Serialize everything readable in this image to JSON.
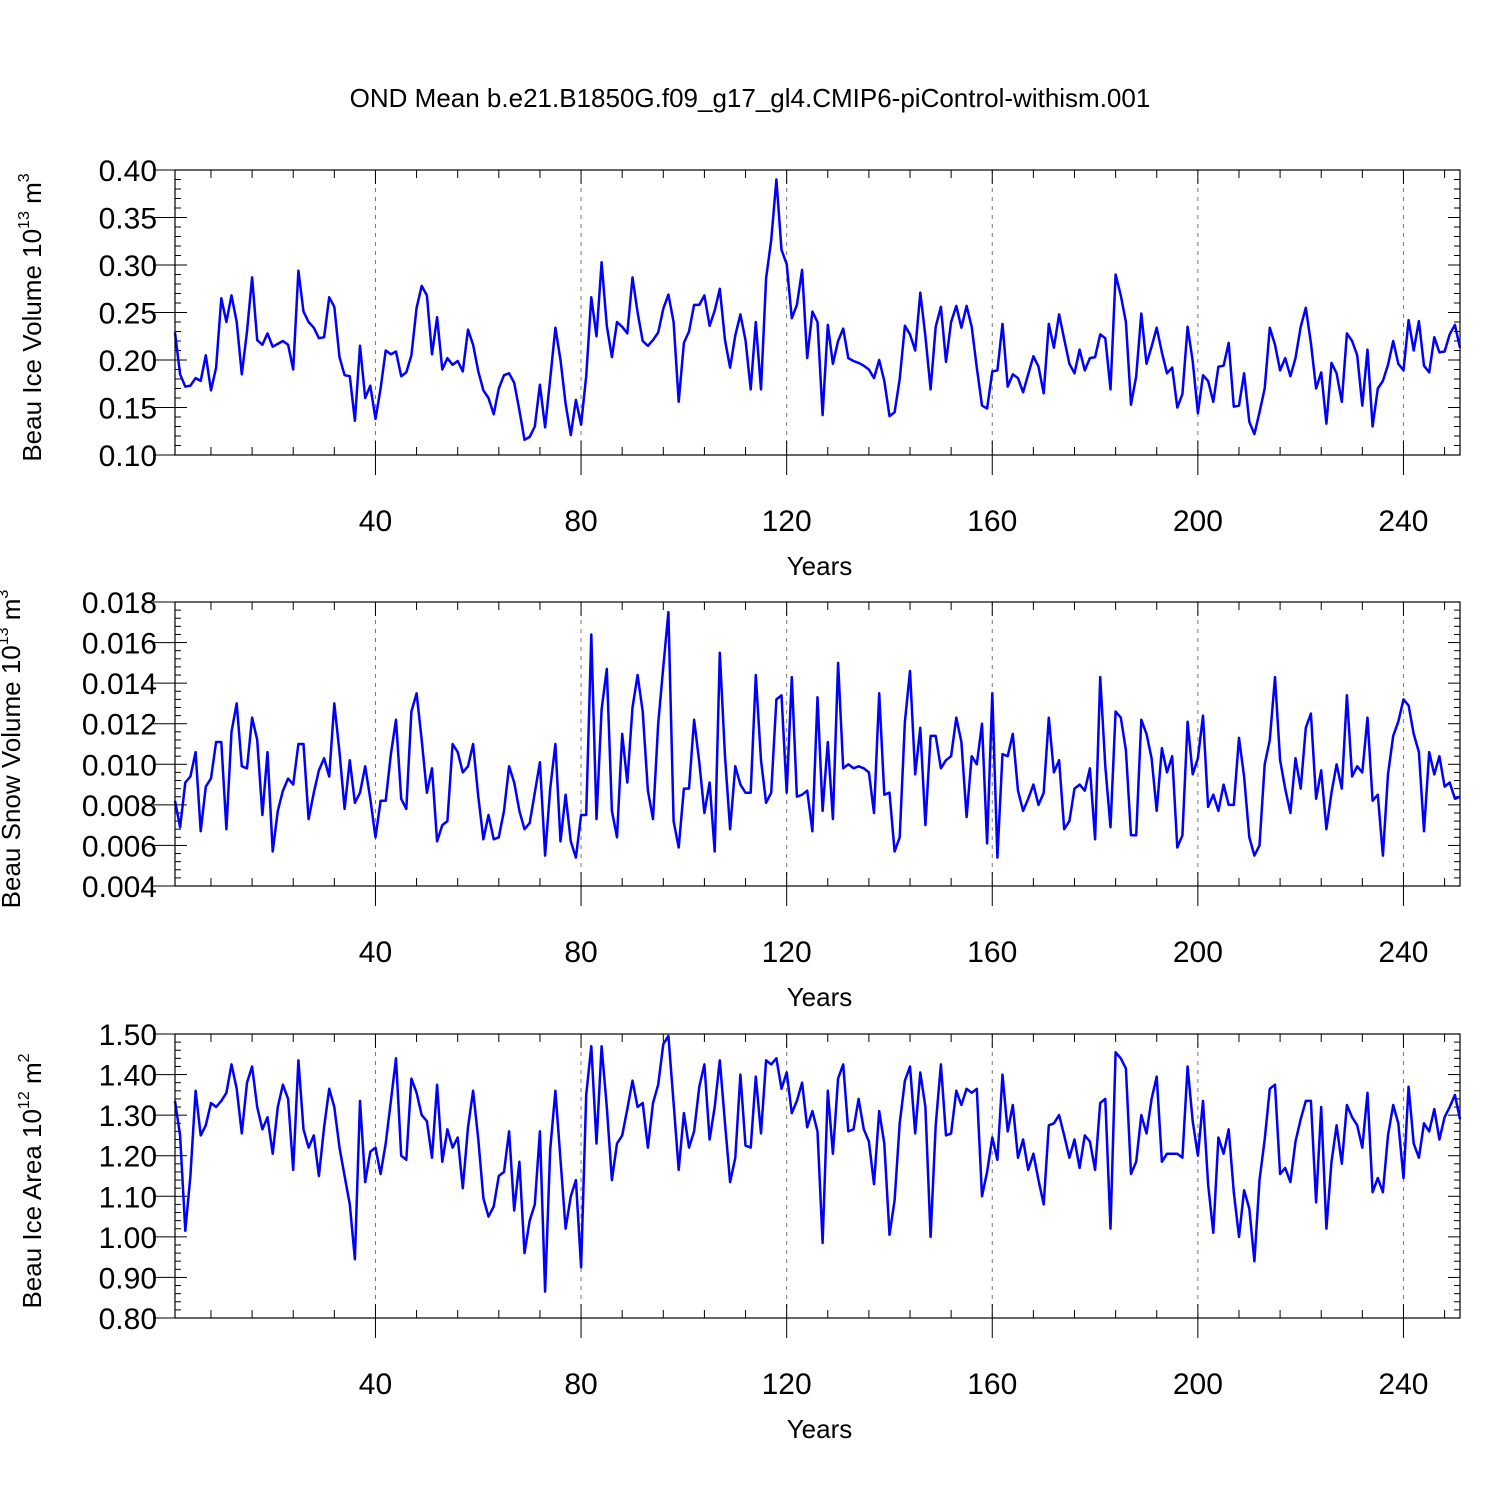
{
  "title": "OND Mean b.e21.B1850G.f09_g17_gl4.CMIP6-piControl-withism.001",
  "line_color": "#0000ff",
  "chart_data": [
    {
      "type": "line",
      "ylabel": "Beau Ice Volume 10",
      "ylabel_exp": "13",
      "ylabel_unit": " m",
      "ylabel_unit_exp": "3",
      "xlabel": "Years",
      "xlim": [
        1,
        251
      ],
      "ylim": [
        0.1,
        0.4
      ],
      "x_ticks": [
        40,
        80,
        120,
        160,
        200,
        240
      ],
      "x_tick_labels": [
        "40",
        "80",
        "120",
        "160",
        "200",
        "240"
      ],
      "y_ticks": [
        0.1,
        0.15,
        0.2,
        0.25,
        0.3,
        0.35,
        0.4
      ],
      "y_tick_labels": [
        "0.10",
        "0.15",
        "0.20",
        "0.25",
        "0.30",
        "0.35",
        "0.40"
      ],
      "vertical_gridlines": [
        40,
        80,
        120,
        160,
        200,
        240
      ],
      "x_start": 1,
      "values": [
        0.229,
        0.185,
        0.172,
        0.173,
        0.181,
        0.178,
        0.205,
        0.168,
        0.192,
        0.265,
        0.24,
        0.268,
        0.24,
        0.185,
        0.23,
        0.287,
        0.221,
        0.216,
        0.228,
        0.214,
        0.217,
        0.22,
        0.216,
        0.19,
        0.294,
        0.251,
        0.24,
        0.234,
        0.223,
        0.224,
        0.266,
        0.256,
        0.203,
        0.184,
        0.183,
        0.136,
        0.215,
        0.16,
        0.173,
        0.138,
        0.17,
        0.21,
        0.206,
        0.209,
        0.183,
        0.187,
        0.205,
        0.255,
        0.278,
        0.268,
        0.206,
        0.245,
        0.19,
        0.202,
        0.195,
        0.199,
        0.188,
        0.232,
        0.216,
        0.188,
        0.168,
        0.16,
        0.143,
        0.17,
        0.184,
        0.186,
        0.176,
        0.147,
        0.116,
        0.119,
        0.13,
        0.174,
        0.129,
        0.18,
        0.234,
        0.2,
        0.154,
        0.121,
        0.158,
        0.132,
        0.183,
        0.266,
        0.225,
        0.303,
        0.236,
        0.203,
        0.24,
        0.235,
        0.228,
        0.287,
        0.25,
        0.22,
        0.215,
        0.221,
        0.229,
        0.254,
        0.269,
        0.24,
        0.156,
        0.218,
        0.23,
        0.258,
        0.258,
        0.268,
        0.236,
        0.252,
        0.275,
        0.221,
        0.192,
        0.226,
        0.248,
        0.221,
        0.169,
        0.24,
        0.169,
        0.286,
        0.326,
        0.39,
        0.316,
        0.301,
        0.244,
        0.258,
        0.295,
        0.202,
        0.251,
        0.24,
        0.142,
        0.237,
        0.196,
        0.22,
        0.233,
        0.202,
        0.199,
        0.197,
        0.194,
        0.19,
        0.181,
        0.2,
        0.178,
        0.141,
        0.145,
        0.18,
        0.236,
        0.227,
        0.21,
        0.271,
        0.225,
        0.169,
        0.235,
        0.256,
        0.198,
        0.24,
        0.257,
        0.234,
        0.257,
        0.235,
        0.192,
        0.152,
        0.149,
        0.188,
        0.189,
        0.238,
        0.172,
        0.185,
        0.181,
        0.166,
        0.185,
        0.204,
        0.193,
        0.165,
        0.238,
        0.213,
        0.248,
        0.222,
        0.196,
        0.186,
        0.211,
        0.189,
        0.202,
        0.203,
        0.227,
        0.223,
        0.169,
        0.29,
        0.268,
        0.24,
        0.153,
        0.183,
        0.249,
        0.196,
        0.214,
        0.234,
        0.208,
        0.186,
        0.192,
        0.15,
        0.164,
        0.235,
        0.199,
        0.144,
        0.184,
        0.178,
        0.156,
        0.193,
        0.194,
        0.218,
        0.151,
        0.152,
        0.186,
        0.135,
        0.122,
        0.145,
        0.17,
        0.234,
        0.216,
        0.189,
        0.202,
        0.183,
        0.202,
        0.235,
        0.255,
        0.218,
        0.17,
        0.187,
        0.133,
        0.197,
        0.186,
        0.156,
        0.228,
        0.22,
        0.205,
        0.152,
        0.211,
        0.13,
        0.17,
        0.178,
        0.195,
        0.22,
        0.196,
        0.189,
        0.242,
        0.21,
        0.241,
        0.194,
        0.187,
        0.224,
        0.208,
        0.209,
        0.227,
        0.237,
        0.213
      ]
    },
    {
      "type": "line",
      "ylabel": "Beau Snow Volume 10",
      "ylabel_exp": "13",
      "ylabel_unit": " m",
      "ylabel_unit_exp": "3",
      "xlabel": "Years",
      "xlim": [
        1,
        251
      ],
      "ylim": [
        0.004,
        0.018
      ],
      "x_ticks": [
        40,
        80,
        120,
        160,
        200,
        240
      ],
      "x_tick_labels": [
        "40",
        "80",
        "120",
        "160",
        "200",
        "240"
      ],
      "y_ticks": [
        0.004,
        0.006,
        0.008,
        0.01,
        0.012,
        0.014,
        0.016,
        0.018
      ],
      "y_tick_labels": [
        "0.004",
        "0.006",
        "0.008",
        "0.010",
        "0.012",
        "0.014",
        "0.016",
        "0.018"
      ],
      "vertical_gridlines": [
        40,
        80,
        120,
        160,
        200,
        240
      ],
      "x_start": 1,
      "values": [
        0.0082,
        0.0069,
        0.0091,
        0.0094,
        0.0106,
        0.0067,
        0.0089,
        0.0093,
        0.0111,
        0.0111,
        0.0068,
        0.0116,
        0.013,
        0.0099,
        0.0098,
        0.0123,
        0.0112,
        0.0075,
        0.0106,
        0.0057,
        0.0077,
        0.0087,
        0.0093,
        0.009,
        0.011,
        0.011,
        0.0073,
        0.0086,
        0.0097,
        0.0103,
        0.0094,
        0.013,
        0.0106,
        0.0078,
        0.0102,
        0.0081,
        0.0086,
        0.0099,
        0.0083,
        0.0064,
        0.0082,
        0.0082,
        0.0105,
        0.0122,
        0.0083,
        0.0078,
        0.0126,
        0.0135,
        0.0112,
        0.0086,
        0.0098,
        0.0062,
        0.007,
        0.0072,
        0.011,
        0.0106,
        0.0096,
        0.0099,
        0.011,
        0.0084,
        0.0063,
        0.0075,
        0.0063,
        0.0064,
        0.0077,
        0.0099,
        0.0091,
        0.0077,
        0.0068,
        0.0071,
        0.0086,
        0.0101,
        0.0055,
        0.0088,
        0.011,
        0.0062,
        0.0085,
        0.0062,
        0.0054,
        0.0075,
        0.0075,
        0.0164,
        0.0073,
        0.0127,
        0.0147,
        0.0077,
        0.0064,
        0.0115,
        0.0091,
        0.0128,
        0.0144,
        0.0126,
        0.0087,
        0.0073,
        0.012,
        0.0148,
        0.0175,
        0.0072,
        0.0059,
        0.0088,
        0.0088,
        0.0122,
        0.0101,
        0.0076,
        0.0091,
        0.0057,
        0.0155,
        0.0104,
        0.0068,
        0.0099,
        0.009,
        0.0086,
        0.0086,
        0.0144,
        0.0102,
        0.0081,
        0.0086,
        0.0132,
        0.0134,
        0.0086,
        0.0143,
        0.0084,
        0.0085,
        0.0087,
        0.0067,
        0.0133,
        0.0077,
        0.0111,
        0.0073,
        0.015,
        0.0098,
        0.01,
        0.0098,
        0.0099,
        0.0098,
        0.0096,
        0.0076,
        0.0135,
        0.0085,
        0.0086,
        0.0057,
        0.0064,
        0.0121,
        0.0146,
        0.0095,
        0.0118,
        0.007,
        0.0114,
        0.0114,
        0.0098,
        0.0102,
        0.0104,
        0.0123,
        0.0111,
        0.0074,
        0.0104,
        0.01,
        0.012,
        0.0061,
        0.0135,
        0.0054,
        0.0105,
        0.0104,
        0.0115,
        0.0087,
        0.0077,
        0.0083,
        0.009,
        0.008,
        0.0086,
        0.0123,
        0.0096,
        0.0102,
        0.0068,
        0.0072,
        0.0088,
        0.009,
        0.0087,
        0.0098,
        0.0063,
        0.0143,
        0.0099,
        0.0069,
        0.0126,
        0.0123,
        0.0107,
        0.0065,
        0.0065,
        0.0122,
        0.0115,
        0.0103,
        0.0077,
        0.0108,
        0.0096,
        0.0104,
        0.0059,
        0.0065,
        0.0121,
        0.0095,
        0.0103,
        0.0124,
        0.0079,
        0.0085,
        0.0077,
        0.009,
        0.008,
        0.008,
        0.0113,
        0.0094,
        0.0064,
        0.0055,
        0.006,
        0.01,
        0.0112,
        0.0143,
        0.0102,
        0.0088,
        0.0076,
        0.0103,
        0.0088,
        0.0118,
        0.0125,
        0.0083,
        0.0097,
        0.0068,
        0.0086,
        0.01,
        0.0088,
        0.0134,
        0.0094,
        0.0099,
        0.0096,
        0.0123,
        0.0082,
        0.0085,
        0.0055,
        0.0095,
        0.0114,
        0.0121,
        0.0132,
        0.0129,
        0.0115,
        0.0106,
        0.0067,
        0.0106,
        0.0095,
        0.0104,
        0.0089,
        0.0091,
        0.0083,
        0.0084
      ]
    },
    {
      "type": "line",
      "ylabel": "Beau Ice Area 10",
      "ylabel_exp": "12",
      "ylabel_unit": " m",
      "ylabel_unit_exp": "2",
      "xlabel": "Years",
      "xlim": [
        1,
        251
      ],
      "ylim": [
        0.8,
        1.5
      ],
      "x_ticks": [
        40,
        80,
        120,
        160,
        200,
        240
      ],
      "x_tick_labels": [
        "40",
        "80",
        "120",
        "160",
        "200",
        "240"
      ],
      "y_ticks": [
        0.8,
        0.9,
        1.0,
        1.1,
        1.2,
        1.3,
        1.4,
        1.5
      ],
      "y_tick_labels": [
        "0.80",
        "0.90",
        "1.00",
        "1.10",
        "1.20",
        "1.30",
        "1.40",
        "1.50"
      ],
      "vertical_gridlines": [
        40,
        80,
        120,
        160,
        200,
        240
      ],
      "x_start": 1,
      "values": [
        1.335,
        1.25,
        1.015,
        1.15,
        1.36,
        1.25,
        1.275,
        1.33,
        1.32,
        1.335,
        1.355,
        1.425,
        1.365,
        1.255,
        1.38,
        1.42,
        1.32,
        1.265,
        1.295,
        1.205,
        1.32,
        1.375,
        1.34,
        1.165,
        1.435,
        1.265,
        1.22,
        1.25,
        1.15,
        1.27,
        1.365,
        1.32,
        1.22,
        1.15,
        1.08,
        0.945,
        1.335,
        1.135,
        1.21,
        1.22,
        1.155,
        1.23,
        1.335,
        1.44,
        1.2,
        1.19,
        1.39,
        1.355,
        1.3,
        1.285,
        1.195,
        1.375,
        1.185,
        1.265,
        1.22,
        1.245,
        1.12,
        1.27,
        1.36,
        1.24,
        1.095,
        1.05,
        1.075,
        1.15,
        1.16,
        1.26,
        1.065,
        1.185,
        0.96,
        1.04,
        1.08,
        1.26,
        0.865,
        1.215,
        1.36,
        1.19,
        1.02,
        1.1,
        1.14,
        0.925,
        1.35,
        1.47,
        1.23,
        1.47,
        1.32,
        1.14,
        1.23,
        1.25,
        1.315,
        1.385,
        1.32,
        1.33,
        1.22,
        1.33,
        1.375,
        1.475,
        1.495,
        1.33,
        1.165,
        1.305,
        1.22,
        1.26,
        1.37,
        1.425,
        1.24,
        1.32,
        1.435,
        1.28,
        1.135,
        1.195,
        1.4,
        1.225,
        1.22,
        1.395,
        1.255,
        1.435,
        1.425,
        1.44,
        1.365,
        1.405,
        1.305,
        1.335,
        1.38,
        1.27,
        1.31,
        1.26,
        0.985,
        1.36,
        1.205,
        1.39,
        1.425,
        1.26,
        1.265,
        1.34,
        1.265,
        1.235,
        1.13,
        1.31,
        1.23,
        1.005,
        1.09,
        1.28,
        1.385,
        1.42,
        1.255,
        1.405,
        1.32,
        1.0,
        1.275,
        1.425,
        1.25,
        1.255,
        1.36,
        1.325,
        1.365,
        1.355,
        1.365,
        1.1,
        1.16,
        1.245,
        1.19,
        1.4,
        1.26,
        1.325,
        1.195,
        1.24,
        1.165,
        1.205,
        1.14,
        1.08,
        1.275,
        1.28,
        1.3,
        1.25,
        1.195,
        1.24,
        1.17,
        1.25,
        1.235,
        1.165,
        1.33,
        1.34,
        1.02,
        1.455,
        1.44,
        1.415,
        1.155,
        1.185,
        1.3,
        1.255,
        1.34,
        1.395,
        1.185,
        1.205,
        1.205,
        1.205,
        1.195,
        1.42,
        1.285,
        1.2,
        1.335,
        1.13,
        1.01,
        1.245,
        1.205,
        1.265,
        1.11,
        1.0,
        1.115,
        1.07,
        0.94,
        1.14,
        1.24,
        1.365,
        1.375,
        1.155,
        1.17,
        1.135,
        1.235,
        1.29,
        1.335,
        1.335,
        1.085,
        1.32,
        1.02,
        1.185,
        1.275,
        1.18,
        1.325,
        1.295,
        1.275,
        1.22,
        1.355,
        1.11,
        1.145,
        1.11,
        1.25,
        1.325,
        1.28,
        1.145,
        1.37,
        1.23,
        1.195,
        1.28,
        1.26,
        1.315,
        1.24,
        1.295,
        1.32,
        1.35,
        1.29
      ]
    }
  ]
}
